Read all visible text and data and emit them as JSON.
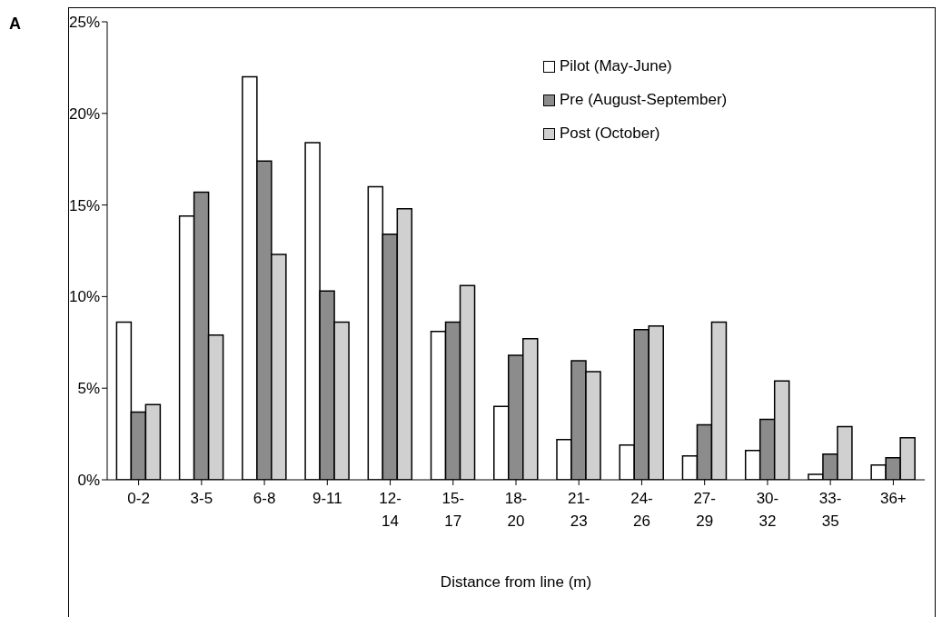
{
  "chart_data": {
    "type": "bar",
    "xlabel": "Distance from line (m)",
    "annotations": [
      "A"
    ],
    "categories": [
      "0-2",
      "3-5",
      "6-8",
      "9-11",
      "12-14",
      "15-17",
      "18-20",
      "21-23",
      "24-26",
      "27-29",
      "30-32",
      "33-35",
      "36+"
    ],
    "series": [
      {
        "name": "Pilot (May-June)",
        "color": "#ffffff",
        "values": [
          8.6,
          14.4,
          22,
          18.4,
          16,
          8.1,
          4,
          2.2,
          1.9,
          1.3,
          1.6,
          0.3,
          0.8
        ]
      },
      {
        "name": "Pre (August-September)",
        "color": "#8c8c8c",
        "values": [
          3.7,
          15.7,
          17.4,
          10.3,
          13.4,
          8.6,
          6.8,
          6.5,
          8.2,
          3,
          3.3,
          1.4,
          1.2
        ]
      },
      {
        "name": "Post (October)",
        "color": "#d0d0d0",
        "values": [
          4.1,
          7.9,
          12.3,
          8.6,
          14.8,
          10.6,
          7.7,
          5.9,
          8.4,
          8.6,
          5.4,
          2.9,
          2.3
        ]
      }
    ],
    "ylim": [
      0,
      25
    ],
    "yticks": [
      {
        "value": 0,
        "label": "0%"
      },
      {
        "value": 5,
        "label": "5%"
      },
      {
        "value": 10,
        "label": "10%"
      },
      {
        "value": 15,
        "label": "15%"
      },
      {
        "value": 20,
        "label": "20%"
      },
      {
        "value": 25,
        "label": "25%"
      }
    ],
    "grid": false,
    "legend": "top right"
  }
}
